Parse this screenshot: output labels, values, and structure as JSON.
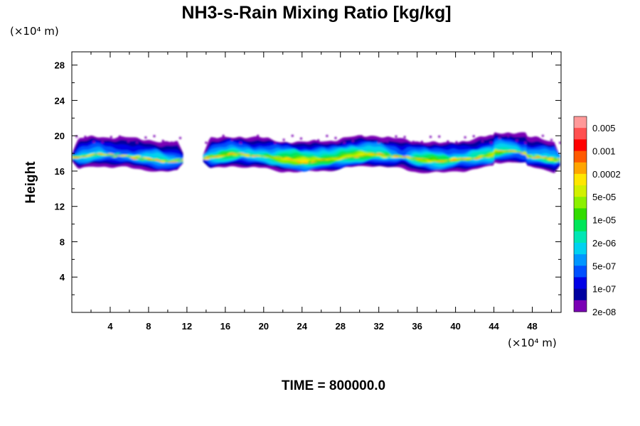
{
  "chart_data": {
    "type": "heatmap",
    "title": "NH3-s-Rain Mixing Ratio [kg/kg]",
    "xlabel": "",
    "ylabel": "Height",
    "x_unit": "(×10⁴ m)",
    "y_unit": "(×10⁴ m)",
    "xlim": [
      0,
      51
    ],
    "ylim": [
      0,
      29.5
    ],
    "x_ticks": [
      4,
      8,
      12,
      16,
      20,
      24,
      28,
      32,
      36,
      40,
      44,
      48
    ],
    "y_ticks": [
      4,
      8,
      12,
      16,
      20,
      24,
      28
    ],
    "grid": false,
    "colorbar": {
      "labels": [
        "0.005",
        "0.001",
        "0.0002",
        "5e-05",
        "1e-05",
        "2e-06",
        "5e-07",
        "1e-07",
        "2e-08"
      ],
      "colors": [
        "#ff9999",
        "#ff5050",
        "#ff0000",
        "#ff5a00",
        "#ffa500",
        "#ffe600",
        "#d2f000",
        "#8cf000",
        "#32dc00",
        "#00e65a",
        "#00e6b4",
        "#00d2f0",
        "#0096ff",
        "#0050ff",
        "#0000e6",
        "#0000a0",
        "#7a00b4"
      ]
    },
    "cloud_band": {
      "x_range": [
        0,
        51
      ],
      "gap_x_range": [
        11.7,
        13.7
      ],
      "y_bottom_approx": 16.2,
      "y_top_approx": 20.0,
      "core_y_approx": 17.5,
      "max_value_near": "2e-04",
      "max_x_approx": 25
    },
    "footer": "TIME = 800000.0"
  }
}
